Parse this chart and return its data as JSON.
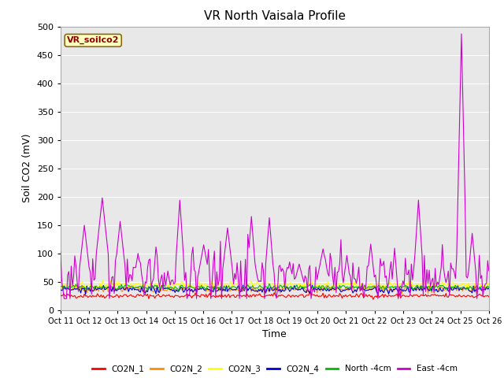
{
  "title": "VR North Vaisala Profile",
  "xlabel": "Time",
  "ylabel": "Soil CO2 (mV)",
  "ylim": [
    0,
    500
  ],
  "yticks": [
    0,
    50,
    100,
    150,
    200,
    250,
    300,
    350,
    400,
    450,
    500
  ],
  "x_labels": [
    "Oct 11",
    "Oct 12",
    "Oct 13",
    "Oct 14",
    "Oct 15",
    "Oct 16",
    "Oct 17",
    "Oct 18",
    "Oct 19",
    "Oct 20",
    "Oct 21",
    "Oct 22",
    "Oct 23",
    "Oct 24",
    "Oct 25",
    "Oct 26"
  ],
  "annotation_text": "VR_soilco2",
  "annotation_color": "#8B0000",
  "annotation_bg": "#FFFFC0",
  "annotation_border": "#8B6914",
  "legend_entries": [
    "CO2N_1",
    "CO2N_2",
    "CO2N_3",
    "CO2N_4",
    "North -4cm",
    "East -4cm"
  ],
  "line_colors": [
    "#FF0000",
    "#FF8C00",
    "#FFFF00",
    "#0000CD",
    "#00BB00",
    "#CC00CC"
  ],
  "background_color": "#E8E8E8",
  "grid_color": "#FFFFFF",
  "seed": 42
}
